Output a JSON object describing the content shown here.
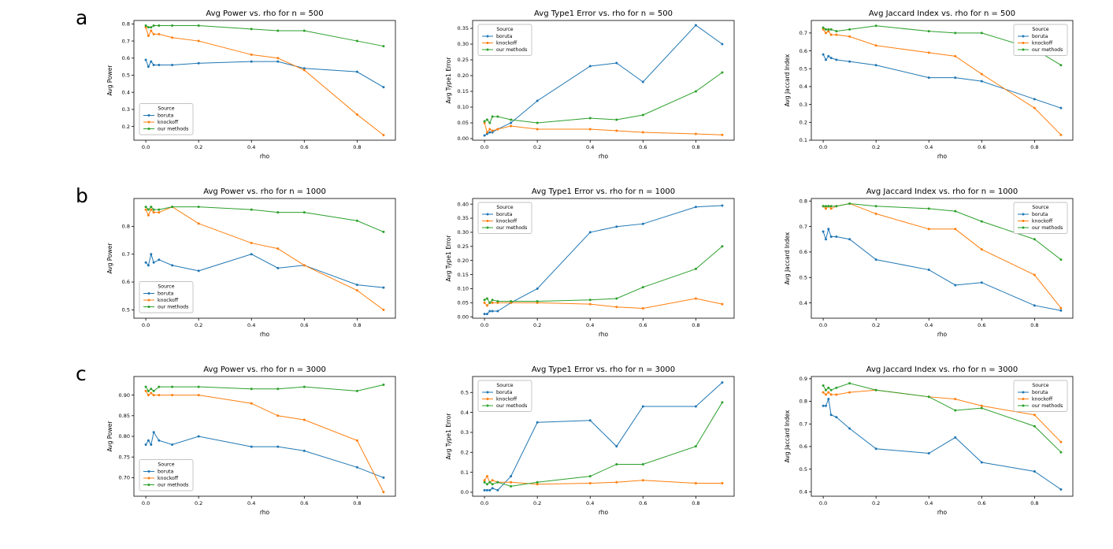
{
  "page": {
    "background": "#ffffff"
  },
  "palette": {
    "boruta": "#1f77b4",
    "knockoff": "#ff7f0e",
    "our_methods": "#2ca02c"
  },
  "rows": [
    {
      "label": "a",
      "chart_indices": [
        0,
        1,
        2
      ]
    },
    {
      "label": "b",
      "chart_indices": [
        3,
        4,
        5
      ]
    },
    {
      "label": "c",
      "chart_indices": [
        6,
        7,
        8
      ]
    }
  ],
  "chart_data": [
    {
      "type": "line",
      "panel": "a",
      "title": "Avg Power vs. rho for n = 500",
      "xlabel": "rho",
      "ylabel": "Avg Power",
      "x": [
        0.0,
        0.01,
        0.02,
        0.03,
        0.05,
        0.1,
        0.2,
        0.4,
        0.5,
        0.6,
        0.8,
        0.9
      ],
      "xlim": [
        -0.045,
        0.945
      ],
      "xticks": [
        "0.0",
        "0.2",
        "0.4",
        "0.6",
        "0.8"
      ],
      "ylim": [
        0.12,
        0.82
      ],
      "yticks": [
        "0.2",
        "0.3",
        "0.4",
        "0.5",
        "0.6",
        "0.7",
        "0.8"
      ],
      "grid": false,
      "legend": {
        "title": "Source",
        "position": "lower-left"
      },
      "series": [
        {
          "name": "boruta",
          "color": "#1f77b4",
          "values": [
            0.59,
            0.55,
            0.58,
            0.56,
            0.56,
            0.56,
            0.57,
            0.58,
            0.58,
            0.54,
            0.52,
            0.43
          ]
        },
        {
          "name": "knockoff",
          "color": "#ff7f0e",
          "values": [
            0.78,
            0.73,
            0.76,
            0.74,
            0.74,
            0.72,
            0.7,
            0.62,
            0.6,
            0.53,
            0.27,
            0.15
          ]
        },
        {
          "name": "our methods",
          "color": "#2ca02c",
          "values": [
            0.79,
            0.78,
            0.78,
            0.79,
            0.79,
            0.79,
            0.79,
            0.77,
            0.76,
            0.76,
            0.7,
            0.67
          ]
        }
      ]
    },
    {
      "type": "line",
      "panel": "a",
      "title": "Avg Type1 Error vs. rho for n = 500",
      "xlabel": "rho",
      "ylabel": "Avg Type1 Error",
      "x": [
        0.0,
        0.01,
        0.02,
        0.03,
        0.05,
        0.1,
        0.2,
        0.4,
        0.5,
        0.6,
        0.8,
        0.9
      ],
      "xlim": [
        -0.045,
        0.945
      ],
      "xticks": [
        "0.0",
        "0.2",
        "0.4",
        "0.6",
        "0.8"
      ],
      "ylim": [
        -0.005,
        0.375
      ],
      "yticks": [
        "0.00",
        "0.05",
        "0.10",
        "0.15",
        "0.20",
        "0.25",
        "0.30",
        "0.35"
      ],
      "grid": false,
      "legend": {
        "title": "Source",
        "position": "upper-left"
      },
      "series": [
        {
          "name": "boruta",
          "color": "#1f77b4",
          "values": [
            0.01,
            0.015,
            0.02,
            0.02,
            0.03,
            0.05,
            0.12,
            0.23,
            0.24,
            0.18,
            0.36,
            0.3
          ]
        },
        {
          "name": "knockoff",
          "color": "#ff7f0e",
          "values": [
            0.05,
            0.02,
            0.03,
            0.025,
            0.03,
            0.04,
            0.03,
            0.03,
            0.025,
            0.02,
            0.015,
            0.012
          ]
        },
        {
          "name": "our methods",
          "color": "#2ca02c",
          "values": [
            0.055,
            0.06,
            0.05,
            0.07,
            0.07,
            0.06,
            0.05,
            0.065,
            0.06,
            0.075,
            0.15,
            0.21
          ]
        }
      ]
    },
    {
      "type": "line",
      "panel": "a",
      "title": "Avg Jaccard Index vs. rho for n = 500",
      "xlabel": "rho",
      "ylabel": "Avg Jaccard Index",
      "x": [
        0.0,
        0.01,
        0.02,
        0.03,
        0.05,
        0.1,
        0.2,
        0.4,
        0.5,
        0.6,
        0.8,
        0.9
      ],
      "xlim": [
        -0.045,
        0.945
      ],
      "xticks": [
        "0.0",
        "0.2",
        "0.4",
        "0.6",
        "0.8"
      ],
      "ylim": [
        0.1,
        0.77
      ],
      "yticks": [
        "0.1",
        "0.2",
        "0.3",
        "0.4",
        "0.5",
        "0.6",
        "0.7"
      ],
      "grid": false,
      "legend": {
        "title": "Source",
        "position": "upper-right"
      },
      "series": [
        {
          "name": "boruta",
          "color": "#1f77b4",
          "values": [
            0.58,
            0.55,
            0.57,
            0.56,
            0.55,
            0.54,
            0.52,
            0.45,
            0.45,
            0.43,
            0.33,
            0.28
          ]
        },
        {
          "name": "knockoff",
          "color": "#ff7f0e",
          "values": [
            0.72,
            0.7,
            0.71,
            0.69,
            0.69,
            0.68,
            0.63,
            0.59,
            0.57,
            0.47,
            0.28,
            0.13
          ]
        },
        {
          "name": "our methods",
          "color": "#2ca02c",
          "values": [
            0.73,
            0.72,
            0.72,
            0.72,
            0.71,
            0.72,
            0.74,
            0.71,
            0.7,
            0.7,
            0.61,
            0.52
          ]
        }
      ]
    },
    {
      "type": "line",
      "panel": "b",
      "title": "Avg Power vs. rho for n = 1000",
      "xlabel": "rho",
      "ylabel": "Avg Power",
      "x": [
        0.0,
        0.01,
        0.02,
        0.03,
        0.05,
        0.1,
        0.2,
        0.4,
        0.5,
        0.6,
        0.8,
        0.9
      ],
      "xlim": [
        -0.045,
        0.945
      ],
      "xticks": [
        "0.0",
        "0.2",
        "0.4",
        "0.6",
        "0.8"
      ],
      "ylim": [
        0.47,
        0.9
      ],
      "yticks": [
        "0.5",
        "0.6",
        "0.7",
        "0.8"
      ],
      "grid": false,
      "legend": {
        "title": "Source",
        "position": "lower-left"
      },
      "series": [
        {
          "name": "boruta",
          "color": "#1f77b4",
          "values": [
            0.67,
            0.66,
            0.7,
            0.67,
            0.68,
            0.66,
            0.64,
            0.7,
            0.65,
            0.66,
            0.59,
            0.58
          ]
        },
        {
          "name": "knockoff",
          "color": "#ff7f0e",
          "values": [
            0.86,
            0.84,
            0.86,
            0.85,
            0.85,
            0.87,
            0.81,
            0.74,
            0.72,
            0.66,
            0.57,
            0.5
          ]
        },
        {
          "name": "our methods",
          "color": "#2ca02c",
          "values": [
            0.87,
            0.86,
            0.87,
            0.86,
            0.86,
            0.87,
            0.87,
            0.86,
            0.85,
            0.85,
            0.82,
            0.78
          ]
        }
      ]
    },
    {
      "type": "line",
      "panel": "b",
      "title": "Avg Type1 Error vs. rho for n = 1000",
      "xlabel": "rho",
      "ylabel": "Avg Type1 Error",
      "x": [
        0.0,
        0.01,
        0.02,
        0.03,
        0.05,
        0.1,
        0.2,
        0.4,
        0.5,
        0.6,
        0.8,
        0.9
      ],
      "xlim": [
        -0.045,
        0.945
      ],
      "xticks": [
        "0.0",
        "0.2",
        "0.4",
        "0.6",
        "0.8"
      ],
      "ylim": [
        -0.005,
        0.42
      ],
      "yticks": [
        "0.00",
        "0.05",
        "0.10",
        "0.15",
        "0.20",
        "0.25",
        "0.30",
        "0.35",
        "0.40"
      ],
      "grid": false,
      "legend": {
        "title": "Source",
        "position": "upper-left"
      },
      "series": [
        {
          "name": "boruta",
          "color": "#1f77b4",
          "values": [
            0.01,
            0.01,
            0.02,
            0.02,
            0.02,
            0.05,
            0.1,
            0.3,
            0.32,
            0.33,
            0.39,
            0.395
          ]
        },
        {
          "name": "knockoff",
          "color": "#ff7f0e",
          "values": [
            0.05,
            0.04,
            0.05,
            0.05,
            0.05,
            0.05,
            0.05,
            0.045,
            0.035,
            0.03,
            0.065,
            0.045
          ]
        },
        {
          "name": "our methods",
          "color": "#2ca02c",
          "values": [
            0.06,
            0.065,
            0.05,
            0.06,
            0.055,
            0.055,
            0.055,
            0.06,
            0.065,
            0.105,
            0.17,
            0.25
          ]
        }
      ]
    },
    {
      "type": "line",
      "panel": "b",
      "title": "Avg Jaccard Index vs. rho for n = 1000",
      "xlabel": "rho",
      "ylabel": "Avg Jaccard Index",
      "x": [
        0.0,
        0.01,
        0.02,
        0.03,
        0.05,
        0.1,
        0.2,
        0.4,
        0.5,
        0.6,
        0.8,
        0.9
      ],
      "xlim": [
        -0.045,
        0.945
      ],
      "xticks": [
        "0.0",
        "0.2",
        "0.4",
        "0.6",
        "0.8"
      ],
      "ylim": [
        0.34,
        0.81
      ],
      "yticks": [
        "0.4",
        "0.5",
        "0.6",
        "0.7",
        "0.8"
      ],
      "grid": false,
      "legend": {
        "title": "Source",
        "position": "upper-right"
      },
      "series": [
        {
          "name": "boruta",
          "color": "#1f77b4",
          "values": [
            0.68,
            0.65,
            0.69,
            0.66,
            0.66,
            0.65,
            0.57,
            0.53,
            0.47,
            0.48,
            0.39,
            0.37
          ]
        },
        {
          "name": "knockoff",
          "color": "#ff7f0e",
          "values": [
            0.78,
            0.77,
            0.78,
            0.77,
            0.78,
            0.79,
            0.75,
            0.69,
            0.69,
            0.61,
            0.51,
            0.38
          ]
        },
        {
          "name": "our methods",
          "color": "#2ca02c",
          "values": [
            0.78,
            0.78,
            0.78,
            0.78,
            0.78,
            0.79,
            0.78,
            0.77,
            0.76,
            0.72,
            0.65,
            0.57
          ]
        }
      ]
    },
    {
      "type": "line",
      "panel": "c",
      "title": "Avg Power vs. rho for n = 3000",
      "xlabel": "rho",
      "ylabel": "Avg Power",
      "x": [
        0.0,
        0.01,
        0.02,
        0.03,
        0.05,
        0.1,
        0.2,
        0.4,
        0.5,
        0.6,
        0.8,
        0.9
      ],
      "xlim": [
        -0.045,
        0.945
      ],
      "xticks": [
        "0.0",
        "0.2",
        "0.4",
        "0.6",
        "0.8"
      ],
      "ylim": [
        0.655,
        0.945
      ],
      "yticks": [
        "0.70",
        "0.75",
        "0.80",
        "0.85",
        "0.90"
      ],
      "grid": false,
      "legend": {
        "title": "Source",
        "position": "lower-left"
      },
      "series": [
        {
          "name": "boruta",
          "color": "#1f77b4",
          "values": [
            0.78,
            0.79,
            0.78,
            0.81,
            0.79,
            0.78,
            0.8,
            0.775,
            0.775,
            0.765,
            0.725,
            0.7
          ]
        },
        {
          "name": "knockoff",
          "color": "#ff7f0e",
          "values": [
            0.91,
            0.9,
            0.905,
            0.9,
            0.9,
            0.9,
            0.9,
            0.88,
            0.85,
            0.84,
            0.79,
            0.665
          ]
        },
        {
          "name": "our methods",
          "color": "#2ca02c",
          "values": [
            0.92,
            0.91,
            0.915,
            0.91,
            0.92,
            0.92,
            0.92,
            0.915,
            0.915,
            0.92,
            0.91,
            0.925
          ]
        }
      ]
    },
    {
      "type": "line",
      "panel": "c",
      "title": "Avg Type1 Error vs. rho for n = 3000",
      "xlabel": "rho",
      "ylabel": "Avg Type1 Error",
      "x": [
        0.0,
        0.01,
        0.02,
        0.03,
        0.05,
        0.1,
        0.2,
        0.4,
        0.5,
        0.6,
        0.8,
        0.9
      ],
      "xlim": [
        -0.045,
        0.945
      ],
      "xticks": [
        "0.0",
        "0.2",
        "0.4",
        "0.6",
        "0.8"
      ],
      "ylim": [
        -0.02,
        0.58
      ],
      "yticks": [
        "0.0",
        "0.1",
        "0.2",
        "0.3",
        "0.4",
        "0.5"
      ],
      "grid": false,
      "legend": {
        "title": "Source",
        "position": "upper-left"
      },
      "series": [
        {
          "name": "boruta",
          "color": "#1f77b4",
          "values": [
            0.01,
            0.01,
            0.01,
            0.02,
            0.01,
            0.08,
            0.35,
            0.36,
            0.23,
            0.43,
            0.43,
            0.55
          ]
        },
        {
          "name": "knockoff",
          "color": "#ff7f0e",
          "values": [
            0.06,
            0.08,
            0.05,
            0.06,
            0.05,
            0.05,
            0.04,
            0.045,
            0.05,
            0.06,
            0.045,
            0.045
          ]
        },
        {
          "name": "our methods",
          "color": "#2ca02c",
          "values": [
            0.05,
            0.04,
            0.05,
            0.04,
            0.05,
            0.03,
            0.05,
            0.08,
            0.14,
            0.14,
            0.23,
            0.45
          ]
        }
      ]
    },
    {
      "type": "line",
      "panel": "c",
      "title": "Avg Jaccard Index vs. rho for n = 3000",
      "xlabel": "rho",
      "ylabel": "Avg Jaccard Index",
      "x": [
        0.0,
        0.01,
        0.02,
        0.03,
        0.05,
        0.1,
        0.2,
        0.4,
        0.5,
        0.6,
        0.8,
        0.9
      ],
      "xlim": [
        -0.045,
        0.945
      ],
      "xticks": [
        "0.0",
        "0.2",
        "0.4",
        "0.6",
        "0.8"
      ],
      "ylim": [
        0.38,
        0.91
      ],
      "yticks": [
        "0.4",
        "0.5",
        "0.6",
        "0.7",
        "0.8",
        "0.9"
      ],
      "grid": false,
      "legend": {
        "title": "Source",
        "position": "upper-right"
      },
      "series": [
        {
          "name": "boruta",
          "color": "#1f77b4",
          "values": [
            0.78,
            0.78,
            0.81,
            0.74,
            0.73,
            0.68,
            0.59,
            0.57,
            0.64,
            0.53,
            0.49,
            0.41
          ]
        },
        {
          "name": "knockoff",
          "color": "#ff7f0e",
          "values": [
            0.84,
            0.83,
            0.84,
            0.83,
            0.83,
            0.84,
            0.85,
            0.82,
            0.81,
            0.78,
            0.74,
            0.62
          ]
        },
        {
          "name": "our methods",
          "color": "#2ca02c",
          "values": [
            0.87,
            0.85,
            0.86,
            0.85,
            0.86,
            0.88,
            0.85,
            0.82,
            0.76,
            0.77,
            0.69,
            0.575
          ]
        }
      ]
    }
  ]
}
